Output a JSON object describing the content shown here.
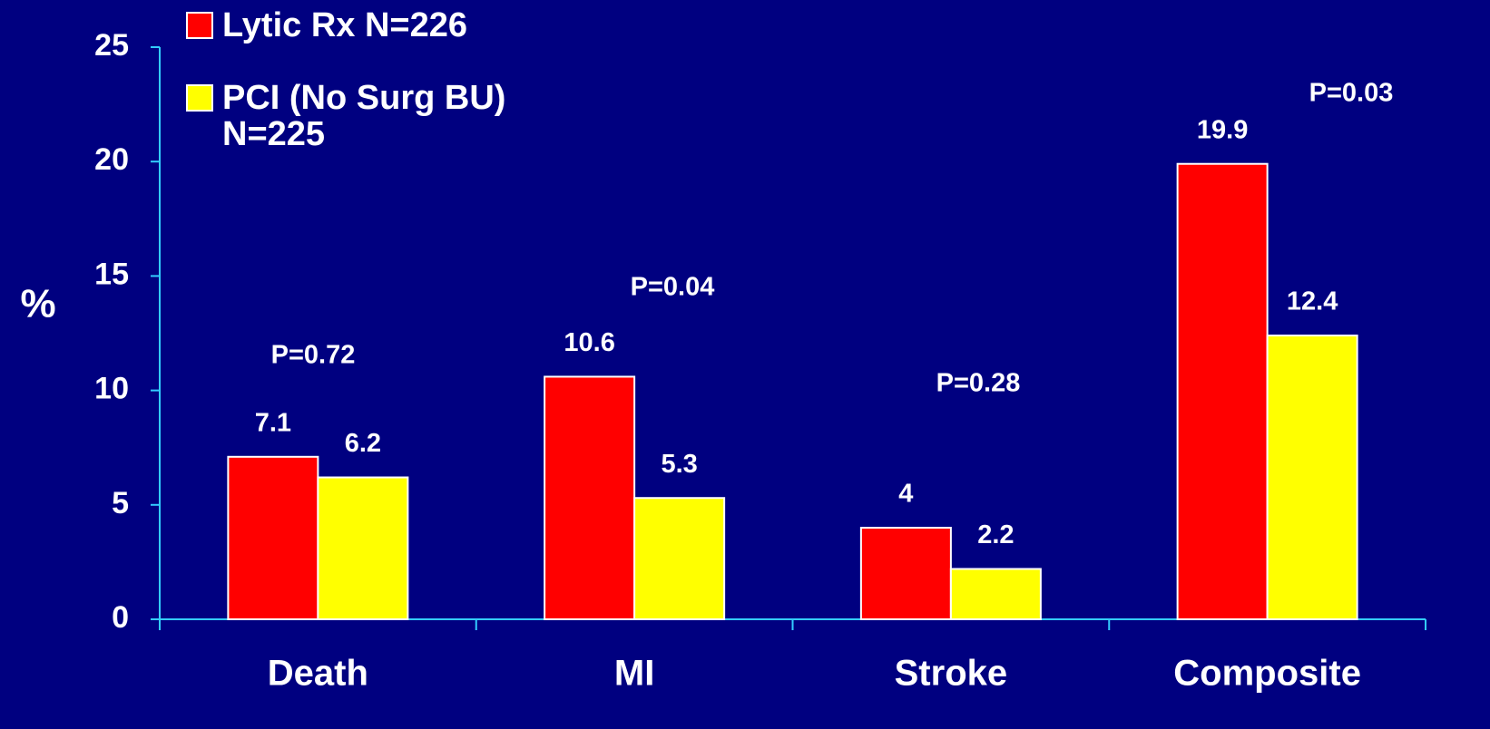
{
  "chart_data": {
    "type": "bar",
    "y_label": "%",
    "categories": [
      "Death",
      "MI",
      "Stroke",
      "Composite"
    ],
    "series": [
      {
        "name": "Lytic Rx N=226",
        "color": "#ff0000",
        "values": [
          7.1,
          10.6,
          4,
          19.9
        ]
      },
      {
        "name": "PCI (No Surg BU) N=225",
        "color": "#ffff00",
        "values": [
          6.2,
          5.3,
          2.2,
          12.4
        ]
      }
    ],
    "annotations": [
      "P=0.72",
      "P=0.04",
      "P=0.28",
      "P=0.03"
    ],
    "ylim": [
      0,
      25
    ],
    "yticks": [
      0,
      5,
      10,
      15,
      20,
      25
    ],
    "grid": false
  }
}
